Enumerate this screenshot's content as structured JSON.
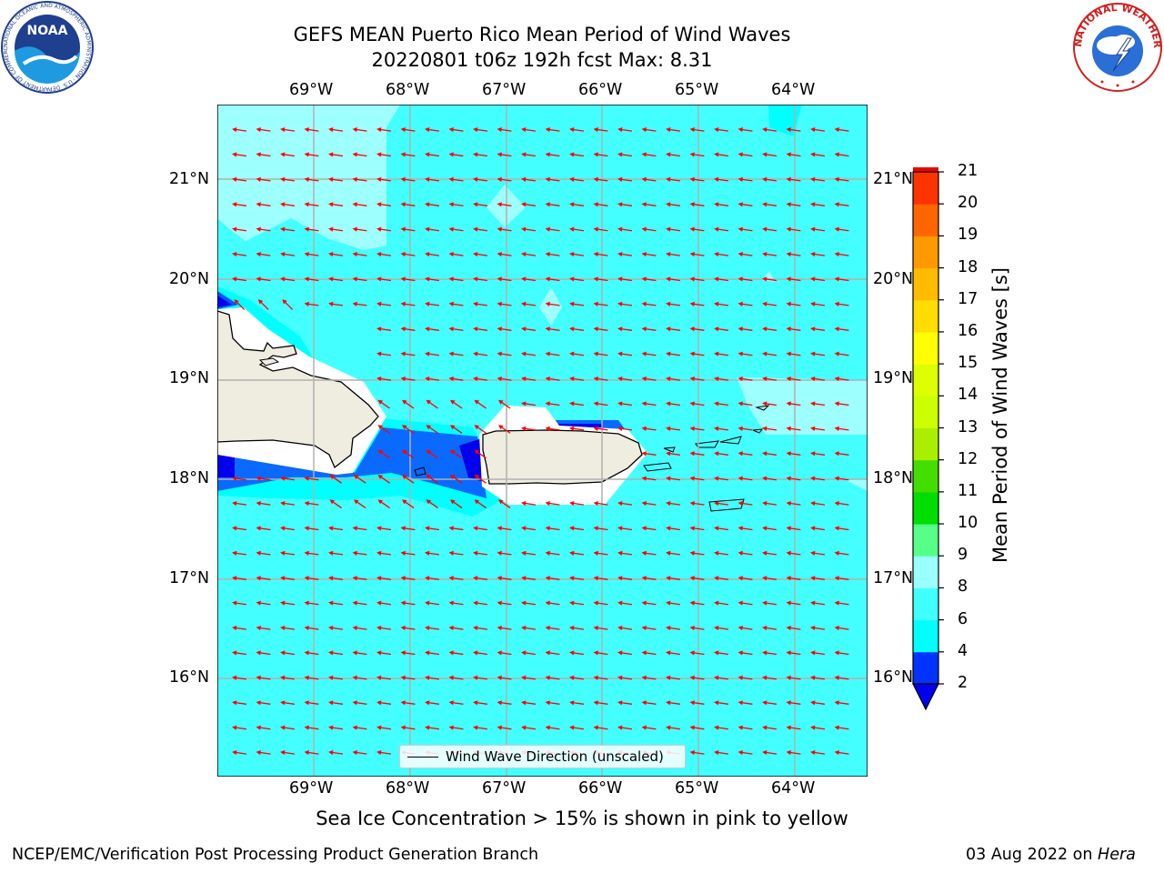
{
  "header": {
    "title_line1": "GEFS MEAN Puerto Rico Mean Period of Wind Waves",
    "title_line2": "20220801 t06z 192h fcst   Max: 8.31"
  },
  "logos": {
    "left": "NOAA",
    "left_ring": "NATIONAL OCEANIC AND ATMOSPHERIC ADMINISTRATION · U.S. DEPARTMENT OF COMMERCE",
    "right_ring": "NATIONAL WEATHER SERVICE"
  },
  "map": {
    "lon_labels": [
      "69°W",
      "68°W",
      "67°W",
      "66°W",
      "65°W",
      "64°W"
    ],
    "lat_labels": [
      "21°N",
      "20°N",
      "19°N",
      "18°N",
      "17°N",
      "16°N"
    ],
    "legend_label": "Wind Wave Direction (unscaled)",
    "vector_color": "#ff0000"
  },
  "colorbar": {
    "label": "Mean Period of Wind Waves [s]",
    "ticks": [
      "2",
      "4",
      "6",
      "8",
      "9",
      "10",
      "11",
      "12",
      "13",
      "14",
      "15",
      "16",
      "17",
      "18",
      "19",
      "20",
      "21"
    ],
    "colors": [
      "#0033ff",
      "#00ffff",
      "#40ffff",
      "#99ffff",
      "#55ff88",
      "#00dd00",
      "#44dd00",
      "#aaee00",
      "#ccff00",
      "#ddff00",
      "#ffff00",
      "#ffdd00",
      "#ffbb00",
      "#ff9900",
      "#ff6600",
      "#ff3300",
      "#ee0000"
    ],
    "extend_color": "#0000ee"
  },
  "subtitle": "Sea Ice Concentration > 15% is shown in pink to yellow",
  "footer": {
    "left": "NCEP/EMC/Verification Post Processing Product Generation Branch",
    "date": "03 Aug 2022 on",
    "machine": "Hera"
  }
}
